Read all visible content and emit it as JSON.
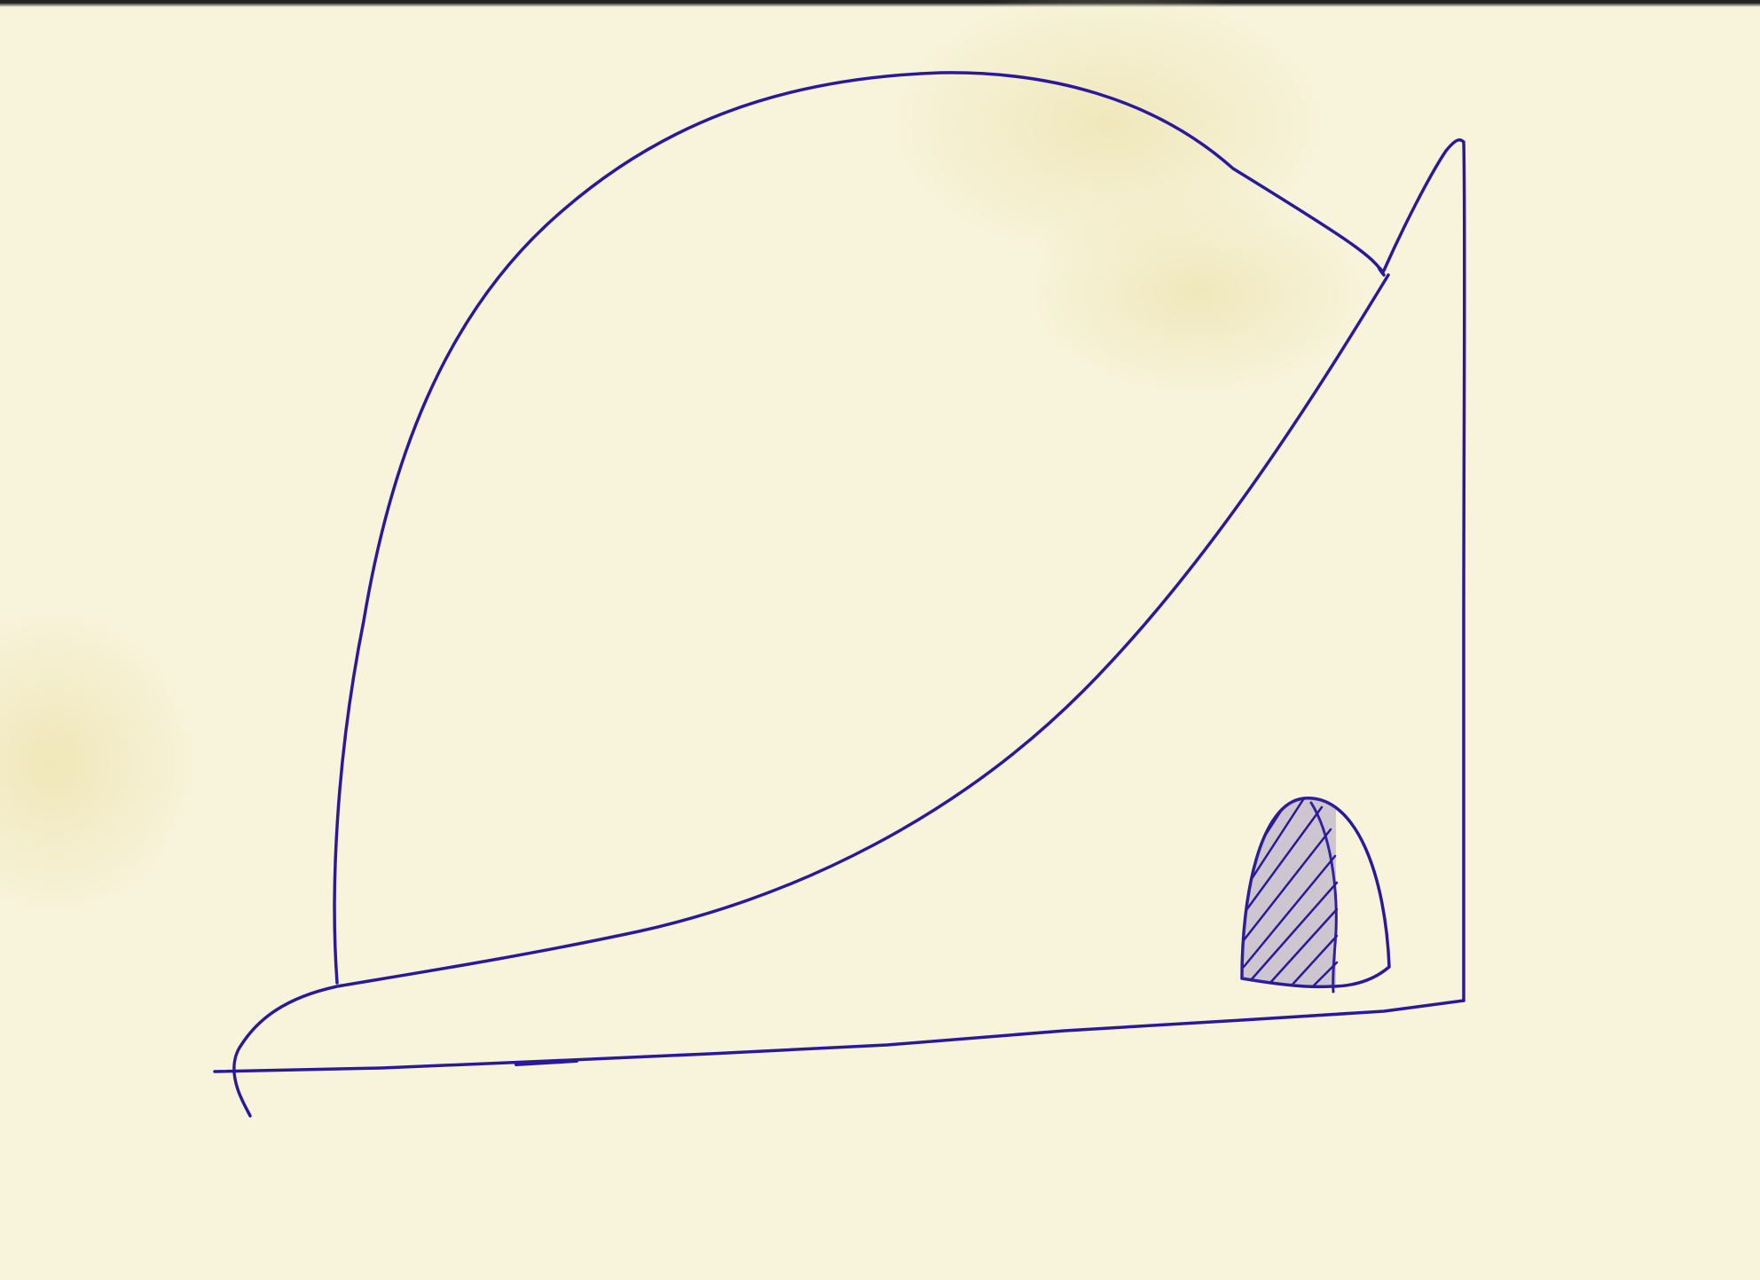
{
  "drawing": {
    "ink_color": "#2a1a9a",
    "paper_color": "#f8f4dc",
    "stain_color": "#efe6b8",
    "elements": [
      "dome-outline",
      "triangular-spire",
      "sweeping-base-curve",
      "ground-line",
      "arched-doorway",
      "hatched-shadow"
    ]
  }
}
